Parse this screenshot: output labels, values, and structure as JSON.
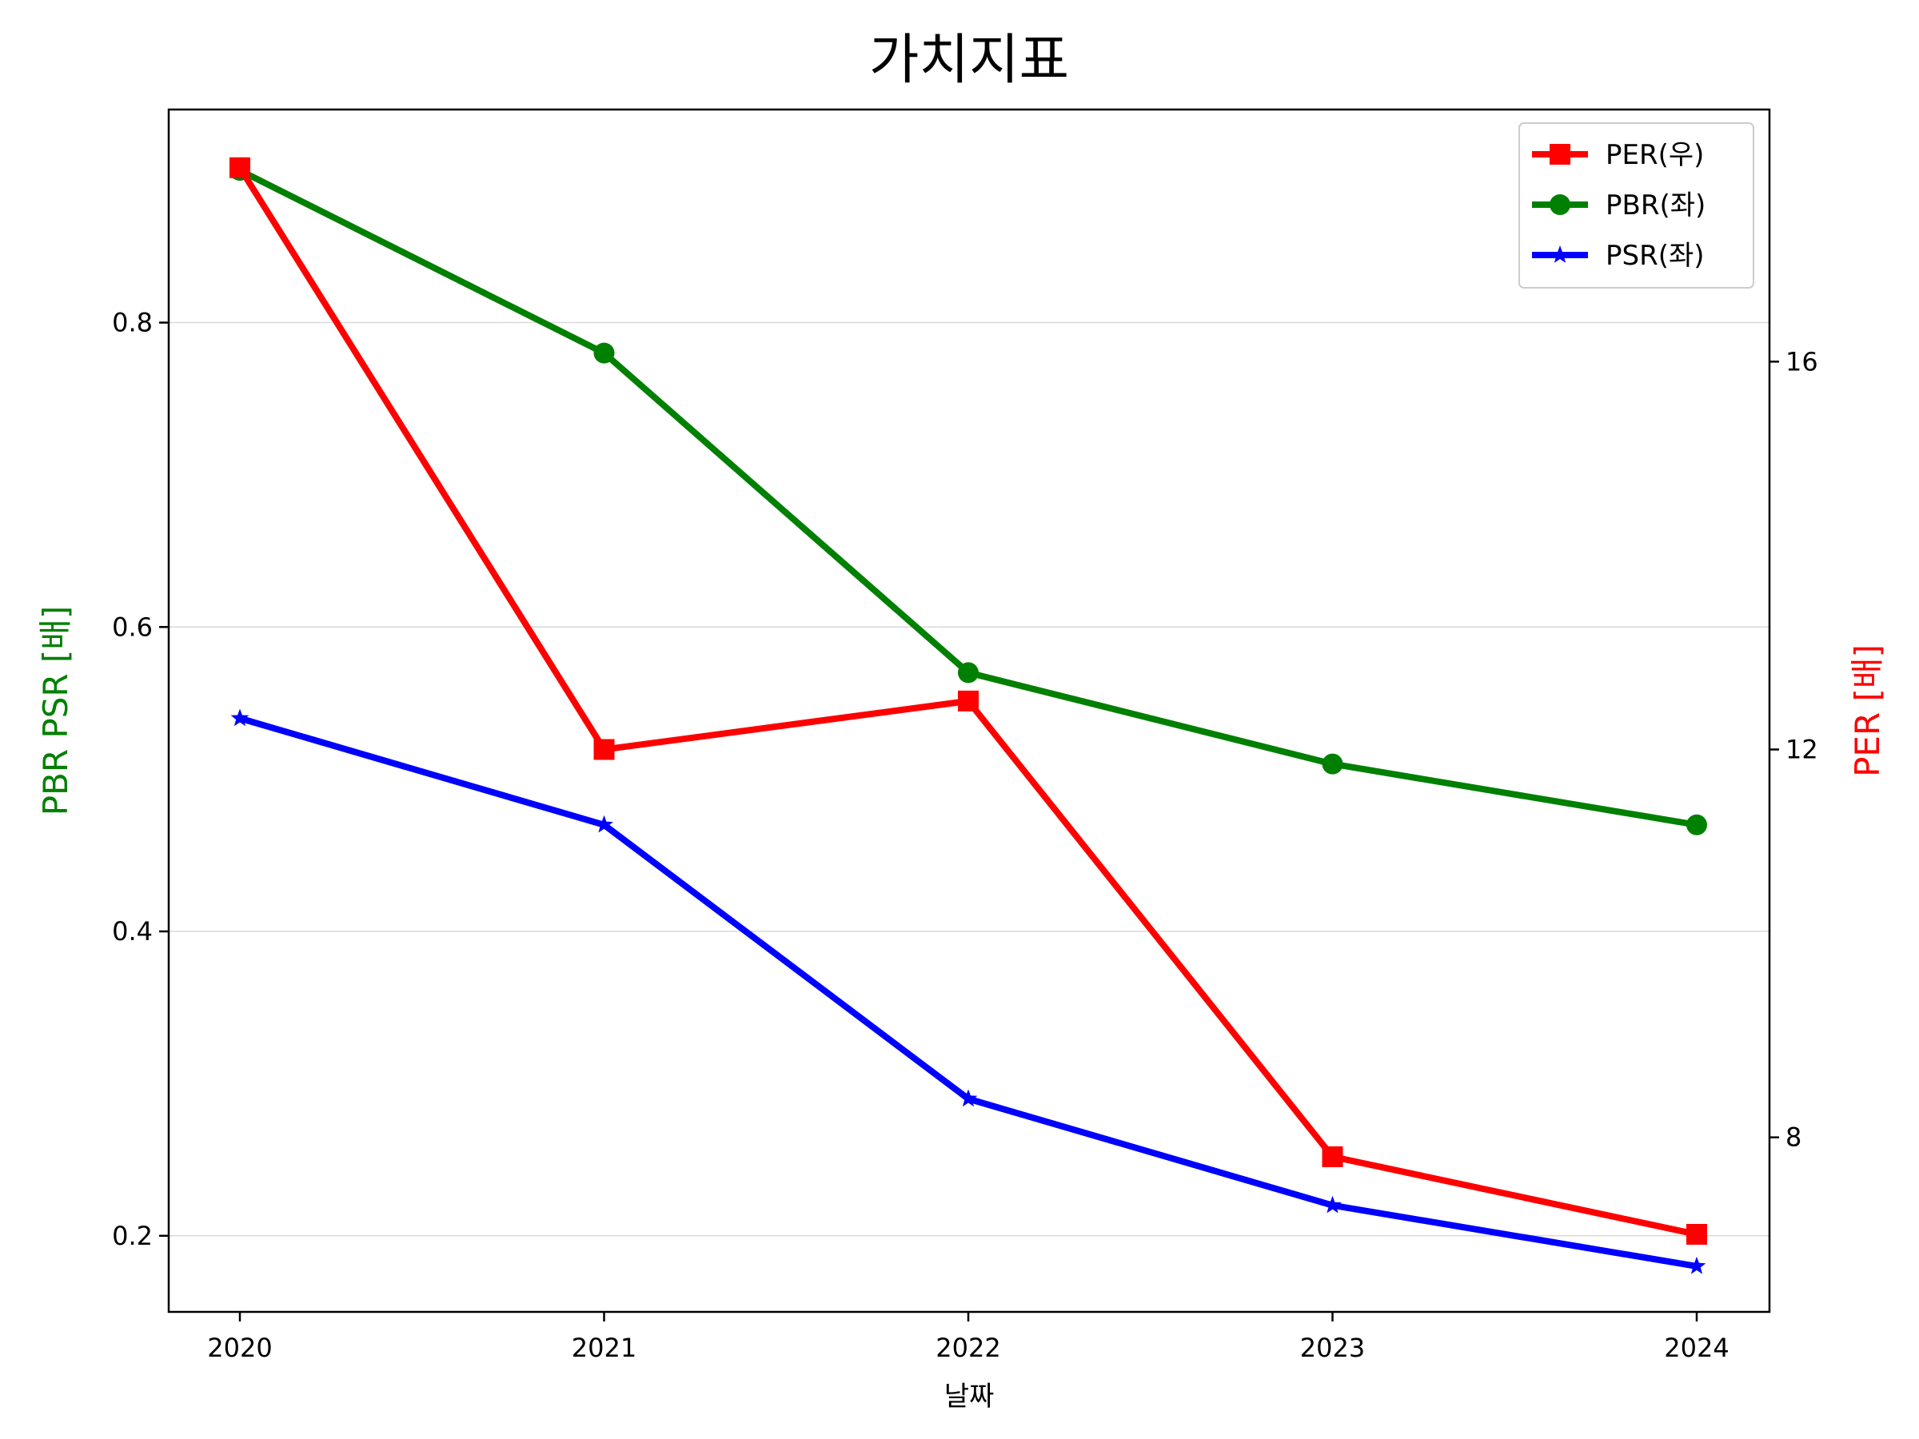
{
  "chart_data": {
    "type": "line",
    "title": "가치지표",
    "xlabel": "날짜",
    "ylabel_left": "PBR PSR [배]",
    "ylabel_right": "PER [배]",
    "categories": [
      "2020",
      "2021",
      "2022",
      "2023",
      "2024"
    ],
    "ylim_left": [
      0.15,
      0.94
    ],
    "yticks_left": [
      "0.2",
      "0.4",
      "0.6",
      "0.8"
    ],
    "ylim_right": [
      6.2,
      18.6
    ],
    "yticks_right": [
      "8",
      "12",
      "16"
    ],
    "grid": "horizontal (left axis)",
    "legend_position": "upper right",
    "series": [
      {
        "name": "PER(우)",
        "axis": "right",
        "color": "#ff0000",
        "marker": "square",
        "values": [
          18.0,
          12.0,
          12.5,
          7.8,
          7.0
        ]
      },
      {
        "name": "PBR(좌)",
        "axis": "left",
        "color": "#008000",
        "marker": "circle",
        "values": [
          0.9,
          0.78,
          0.57,
          0.51,
          0.47
        ]
      },
      {
        "name": "PSR(좌)",
        "axis": "left",
        "color": "#0000ff",
        "marker": "star",
        "values": [
          0.54,
          0.47,
          0.29,
          0.22,
          0.18
        ]
      }
    ],
    "colors": {
      "left_label": "#008000",
      "right_label": "#ff0000",
      "grid": "#d9d9d9"
    }
  }
}
